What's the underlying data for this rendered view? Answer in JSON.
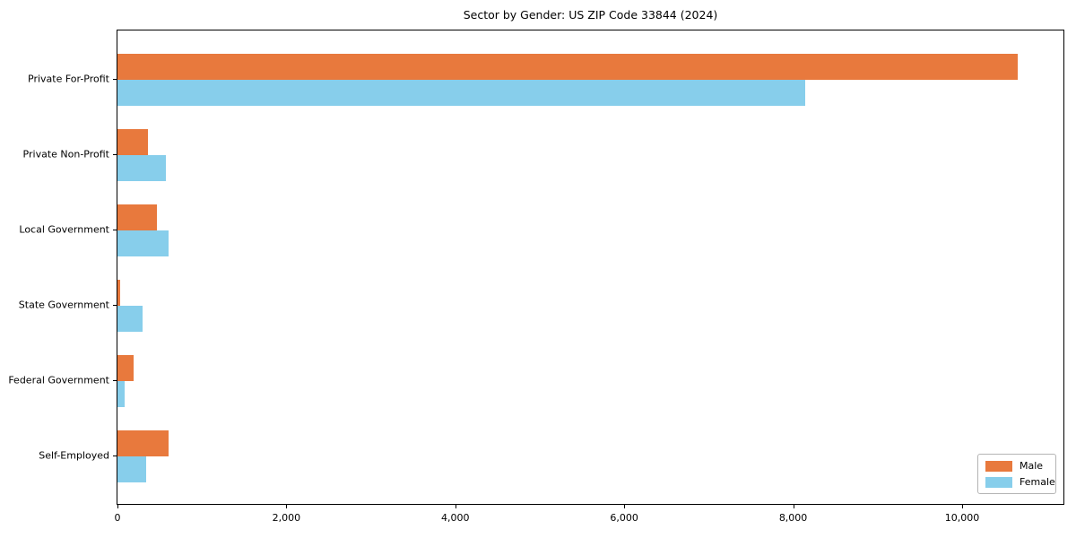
{
  "chart_data": {
    "type": "bar",
    "orientation": "horizontal",
    "title": "Sector by Gender: US ZIP Code 33844 (2024)",
    "categories": [
      "Private For-Profit",
      "Private Non-Profit",
      "Local Government",
      "State Government",
      "Federal Government",
      "Self-Employed"
    ],
    "series": [
      {
        "name": "Male",
        "color": "#e8793d",
        "values": [
          10660,
          365,
          470,
          30,
          195,
          600
        ]
      },
      {
        "name": "Female",
        "color": "#87ceeb",
        "values": [
          8140,
          570,
          600,
          300,
          90,
          345
        ]
      }
    ],
    "xlim": [
      0,
      11200
    ],
    "x_ticks": [
      0,
      2000,
      4000,
      6000,
      8000,
      10000
    ],
    "x_tick_labels": [
      "0",
      "2,000",
      "4,000",
      "6,000",
      "8,000",
      "10,000"
    ],
    "grid": false,
    "legend_position": "lower right",
    "axis_color": "#000000",
    "background_color": "#ffffff"
  }
}
